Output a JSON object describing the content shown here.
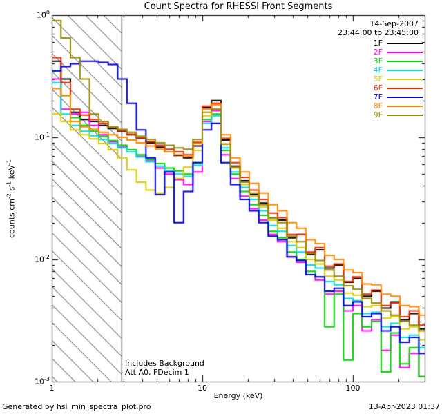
{
  "title": "Count Spectra for RHESSI Front Segments",
  "header": {
    "date": "14-Sep-2007",
    "time_range": "23:44:00 to 23:45:00"
  },
  "annotations": {
    "line1": "Includes Background",
    "line2": "Att A0, FDecim 1"
  },
  "footer": {
    "left": "Generated by hsi_min_spectra_plot.pro",
    "right": "13-Apr-2023 01:37"
  },
  "chart_data": {
    "type": "line",
    "subtype": "step-histogram",
    "title": "Count Spectra for RHESSI Front Segments",
    "xlabel": "Energy (keV)",
    "ylabel_segments": [
      {
        "t": "counts cm"
      },
      {
        "sup": "-2"
      },
      {
        "t": " s"
      },
      {
        "sup": "-1"
      },
      {
        "t": " keV"
      },
      {
        "sup": "-1"
      }
    ],
    "x_scale": "log",
    "y_scale": "log",
    "xlim": [
      1,
      300
    ],
    "ylim": [
      0.001,
      1
    ],
    "grid": false,
    "legend_position": "top-right-inside",
    "hatch_region": {
      "x_from": 1,
      "x_to": 2.9,
      "style": "diagonal-hatch"
    },
    "x_ticks": {
      "major": [
        1,
        10,
        100
      ],
      "minor": [
        2,
        3,
        4,
        5,
        6,
        7,
        8,
        9,
        20,
        30,
        40,
        50,
        60,
        70,
        80,
        90,
        200,
        300
      ],
      "labels": [
        {
          "label": "1",
          "value": 1
        },
        {
          "label": "10",
          "value": 10
        },
        {
          "label": "100",
          "value": 100
        }
      ]
    },
    "y_ticks": {
      "major": [
        1,
        0.1,
        0.01,
        0.001
      ],
      "minor": [
        0.002,
        0.003,
        0.004,
        0.005,
        0.006,
        0.007,
        0.008,
        0.009,
        0.02,
        0.03,
        0.04,
        0.05,
        0.06,
        0.07,
        0.08,
        0.09,
        0.2,
        0.3,
        0.4,
        0.5,
        0.6,
        0.7,
        0.8,
        0.9
      ],
      "labels": [
        {
          "base": "10",
          "exp": "0",
          "value": 1
        },
        {
          "base": "10",
          "exp": "-1",
          "value": 0.1
        },
        {
          "base": "10",
          "exp": "-2",
          "value": 0.01
        },
        {
          "base": "10",
          "exp": "-3",
          "value": 0.001
        }
      ]
    },
    "x": [
      1.0,
      1.15,
      1.33,
      1.54,
      1.78,
      2.05,
      2.37,
      2.74,
      3.16,
      3.65,
      4.22,
      4.87,
      5.62,
      6.49,
      7.5,
      8.66,
      10.0,
      11.5,
      13.3,
      15.4,
      17.8,
      20.5,
      23.7,
      27.4,
      31.6,
      36.5,
      42.2,
      48.7,
      56.2,
      64.9,
      75.0,
      86.6,
      100,
      115,
      133,
      154,
      178,
      205,
      237,
      274,
      316
    ],
    "series": [
      {
        "name": "1F",
        "color": "#000000",
        "values": [
          0.42,
          0.3,
          0.16,
          0.14,
          0.135,
          0.125,
          0.118,
          0.112,
          0.105,
          0.098,
          0.09,
          0.083,
          0.076,
          0.071,
          0.068,
          0.085,
          0.175,
          0.2,
          0.095,
          0.058,
          0.044,
          0.034,
          0.029,
          0.022,
          0.021,
          0.015,
          0.016,
          0.011,
          0.012,
          0.0085,
          0.009,
          0.0065,
          0.007,
          0.005,
          0.0055,
          0.004,
          0.0045,
          0.0032,
          0.0036,
          0.0027,
          0.003
        ]
      },
      {
        "name": "2F",
        "color": "#ff00ff",
        "values": [
          0.3,
          0.17,
          0.155,
          0.16,
          0.125,
          0.105,
          0.092,
          0.083,
          0.076,
          0.07,
          0.064,
          0.056,
          0.05,
          0.045,
          0.041,
          0.052,
          0.135,
          0.165,
          0.072,
          0.046,
          0.033,
          0.026,
          0.021,
          0.016,
          0.014,
          0.0105,
          0.0095,
          0.0075,
          0.0068,
          0.0052,
          0.0055,
          0.0038,
          0.0042,
          0.0026,
          0.0032,
          0.0018,
          0.0024,
          0.0013,
          0.0017,
          0.0011,
          0.0013
        ]
      },
      {
        "name": "3F",
        "color": "#00d400",
        "values": [
          0.35,
          0.22,
          0.145,
          0.125,
          0.112,
          0.102,
          0.094,
          0.086,
          0.079,
          0.072,
          0.066,
          0.061,
          0.056,
          0.053,
          0.05,
          0.062,
          0.14,
          0.155,
          0.078,
          0.05,
          0.036,
          0.028,
          0.023,
          0.017,
          0.015,
          0.0115,
          0.01,
          0.008,
          0.0072,
          0.0028,
          0.0052,
          0.0015,
          0.0036,
          0.0028,
          0.0031,
          0.0012,
          0.0025,
          0.0014,
          0.0019,
          0.0011,
          0.0014
        ]
      },
      {
        "name": "4F",
        "color": "#00dede",
        "values": [
          0.28,
          0.155,
          0.125,
          0.112,
          0.103,
          0.096,
          0.089,
          0.082,
          0.076,
          0.069,
          0.063,
          0.058,
          0.053,
          0.05,
          0.048,
          0.059,
          0.13,
          0.15,
          0.082,
          0.052,
          0.039,
          0.031,
          0.025,
          0.019,
          0.017,
          0.013,
          0.0115,
          0.009,
          0.0085,
          0.0066,
          0.0062,
          0.0048,
          0.0046,
          0.0036,
          0.0037,
          0.0028,
          0.003,
          0.0023,
          0.0024,
          0.0019,
          0.002
        ]
      },
      {
        "name": "5F",
        "color": "#ddcc00",
        "values": [
          0.155,
          0.135,
          0.115,
          0.105,
          0.097,
          0.089,
          0.079,
          0.068,
          0.054,
          0.043,
          0.037,
          0.035,
          0.039,
          0.046,
          0.057,
          0.078,
          0.15,
          0.17,
          0.088,
          0.056,
          0.041,
          0.033,
          0.027,
          0.021,
          0.018,
          0.014,
          0.0125,
          0.01,
          0.0092,
          0.0073,
          0.0068,
          0.0053,
          0.0051,
          0.0041,
          0.0042,
          0.0033,
          0.0034,
          0.0027,
          0.0028,
          0.0022,
          0.0023
        ]
      },
      {
        "name": "6F",
        "color": "#ee2a00",
        "values": [
          0.45,
          0.28,
          0.17,
          0.152,
          0.14,
          0.13,
          0.121,
          0.113,
          0.106,
          0.099,
          0.092,
          0.086,
          0.08,
          0.076,
          0.072,
          0.091,
          0.18,
          0.19,
          0.098,
          0.062,
          0.047,
          0.037,
          0.031,
          0.024,
          0.022,
          0.016,
          0.016,
          0.0115,
          0.0125,
          0.0088,
          0.0092,
          0.0066,
          0.0072,
          0.0052,
          0.0056,
          0.0042,
          0.0044,
          0.0034,
          0.0038,
          0.0029,
          0.0031
        ]
      },
      {
        "name": "7F",
        "color": "#0000dd",
        "values": [
          0.35,
          0.38,
          0.4,
          0.42,
          0.42,
          0.41,
          0.395,
          0.3,
          0.19,
          0.115,
          0.068,
          0.034,
          0.052,
          0.02,
          0.036,
          0.062,
          0.115,
          0.13,
          0.062,
          0.041,
          0.031,
          0.025,
          0.02,
          0.0155,
          0.0145,
          0.0105,
          0.0098,
          0.0075,
          0.0072,
          0.0055,
          0.0058,
          0.0042,
          0.0045,
          0.0034,
          0.0036,
          0.0026,
          0.0028,
          0.0021,
          0.0023,
          0.0017,
          0.0018
        ]
      },
      {
        "name": "8F",
        "color": "#ff8800",
        "values": [
          0.25,
          0.22,
          0.135,
          0.122,
          0.116,
          0.11,
          0.105,
          0.1,
          0.095,
          0.09,
          0.085,
          0.08,
          0.076,
          0.072,
          0.07,
          0.089,
          0.17,
          0.185,
          0.105,
          0.068,
          0.052,
          0.042,
          0.035,
          0.028,
          0.025,
          0.02,
          0.018,
          0.0145,
          0.0135,
          0.0108,
          0.01,
          0.0082,
          0.0078,
          0.0063,
          0.0062,
          0.0052,
          0.005,
          0.0042,
          0.0041,
          0.0035,
          0.0034
        ]
      },
      {
        "name": "9F",
        "color": "#998a00",
        "values": [
          0.9,
          0.65,
          0.45,
          0.3,
          0.155,
          0.135,
          0.122,
          0.116,
          0.11,
          0.102,
          0.096,
          0.09,
          0.086,
          0.082,
          0.08,
          0.096,
          0.16,
          0.17,
          0.088,
          0.057,
          0.043,
          0.035,
          0.028,
          0.022,
          0.02,
          0.0155,
          0.014,
          0.0112,
          0.0098,
          0.0082,
          0.0073,
          0.0061,
          0.0057,
          0.0048,
          0.0044,
          0.0038,
          0.0035,
          0.0031,
          0.0029,
          0.0026,
          0.0025
        ]
      }
    ]
  }
}
